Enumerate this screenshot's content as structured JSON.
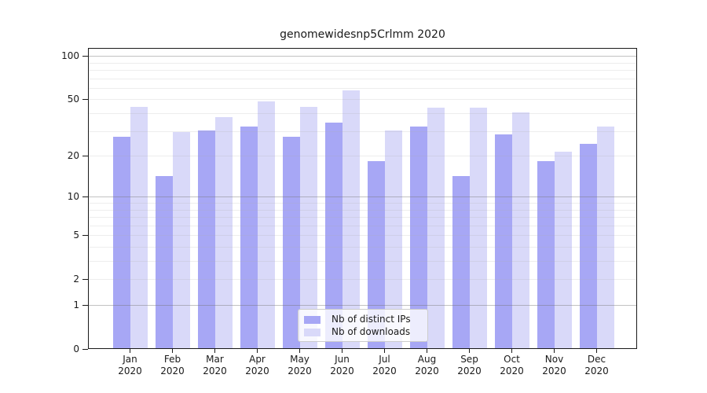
{
  "title": "genomewidesnp5Crlmm 2020",
  "colors": {
    "ips_bar": "#a7a7f5",
    "downloads_bar": "#d9d9f9",
    "grid_major": "rgba(120,120,120,0.45)",
    "grid_minor": "rgba(175,175,175,0.22)",
    "spine": "#1a1a1a"
  },
  "y_axis": {
    "tick_labels": [
      100,
      50,
      20,
      10,
      5,
      2,
      1,
      0
    ],
    "major_gridlines": [
      1,
      10,
      100
    ],
    "minor_gridlines": [
      2,
      3,
      4,
      5,
      6,
      7,
      8,
      9,
      20,
      30,
      40,
      50,
      60,
      70,
      80,
      90
    ]
  },
  "x_axis": {
    "months": [
      "Jan",
      "Feb",
      "Mar",
      "Apr",
      "May",
      "Jun",
      "Jul",
      "Aug",
      "Sep",
      "Oct",
      "Nov",
      "Dec"
    ],
    "year": "2020"
  },
  "legend": {
    "items": [
      {
        "label": "Nb of distinct IPs",
        "color_key": "ips_bar"
      },
      {
        "label": "Nb of downloads",
        "color_key": "downloads_bar"
      }
    ]
  },
  "chart_data": {
    "type": "bar",
    "title": "genomewidesnp5Crlmm 2020",
    "categories": [
      "Jan 2020",
      "Feb 2020",
      "Mar 2020",
      "Apr 2020",
      "May 2020",
      "Jun 2020",
      "Jul 2020",
      "Aug 2020",
      "Sep 2020",
      "Oct 2020",
      "Nov 2020",
      "Dec 2020"
    ],
    "series": [
      {
        "name": "Nb of distinct IPs",
        "values": [
          27,
          14,
          30,
          32,
          27,
          34,
          18,
          32,
          14,
          28,
          18,
          24
        ]
      },
      {
        "name": "Nb of downloads",
        "values": [
          44,
          29,
          37,
          48,
          44,
          57,
          30,
          43,
          43,
          40,
          21,
          32
        ]
      }
    ],
    "xlabel": "",
    "ylabel": "",
    "yscale": "log1p",
    "y_ticks": [
      0,
      1,
      2,
      5,
      10,
      20,
      50,
      100
    ],
    "ylim": [
      0,
      130
    ],
    "grid": true,
    "legend_position": "lower center"
  }
}
